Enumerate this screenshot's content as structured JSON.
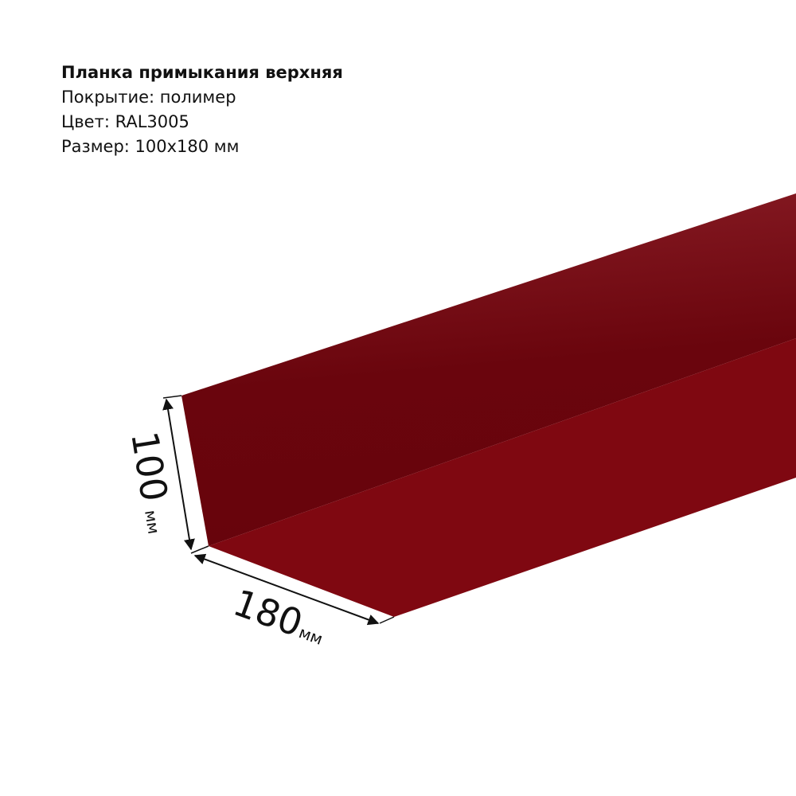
{
  "product": {
    "title": "Планка примыкания верхняя",
    "coating": "Покрытие: полимер",
    "color": "Цвет: RAL3005",
    "size": "Размер: 100x180 мм"
  },
  "dimensions": {
    "height_value": "100",
    "height_unit": "мм",
    "width_value": "180",
    "width_unit": "мм"
  },
  "colors": {
    "upper_face_light": "#861a22",
    "upper_face_dark": "#6a050d",
    "lower_face": "#7f0811",
    "dimension_lines": "#111111"
  }
}
